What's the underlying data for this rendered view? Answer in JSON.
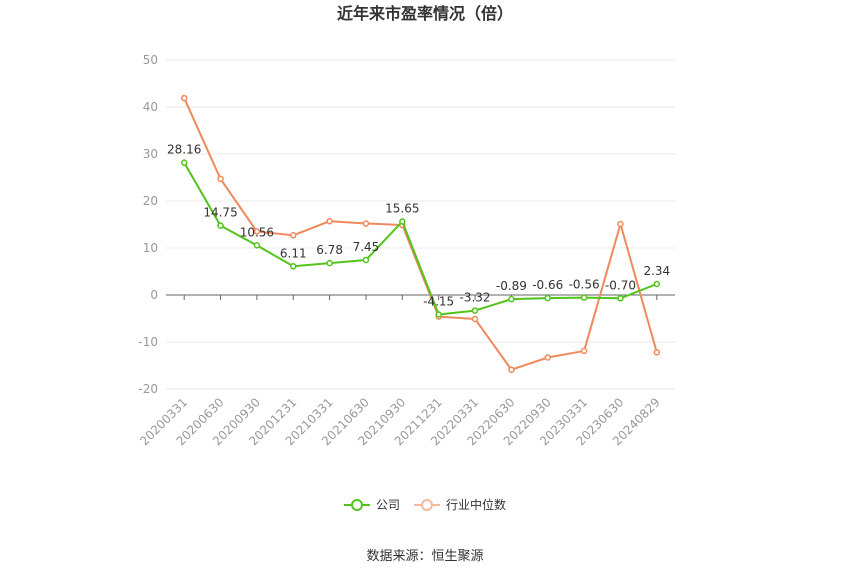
{
  "chart_data": {
    "type": "line",
    "title": "近年来市盈率情况（倍）",
    "categories": [
      "20200331",
      "20200630",
      "20200930",
      "20201231",
      "20210331",
      "20210630",
      "20210930",
      "20211231",
      "20220331",
      "20220630",
      "20220930",
      "20230331",
      "20230630",
      "20240829"
    ],
    "ylim": [
      -20,
      50
    ],
    "yticks": [
      50,
      40,
      30,
      20,
      10,
      0,
      -10,
      -20
    ],
    "grid": true,
    "legend_position": "bottom",
    "series": [
      {
        "name": "公司",
        "color": "#52c41a",
        "values": [
          28.16,
          14.75,
          10.56,
          6.11,
          6.78,
          7.45,
          15.65,
          -4.15,
          -3.32,
          -0.89,
          -0.66,
          -0.56,
          -0.7,
          2.34
        ],
        "labels": [
          "28.16",
          "14.75",
          "10.56",
          "6.11",
          "6.78",
          "7.45",
          "15.65",
          "-4.15",
          "-3.32",
          "-0.89",
          "-0.66",
          "-0.56",
          "-0.70",
          "2.34"
        ]
      },
      {
        "name": "行业中位数",
        "color": "#f0895c",
        "values": [
          41.9,
          24.7,
          13.5,
          12.7,
          15.7,
          15.2,
          14.9,
          -4.6,
          -5.1,
          -15.9,
          -13.3,
          -11.9,
          15.1,
          -12.2
        ]
      }
    ]
  },
  "legend": {
    "company": "公司",
    "industry": "行业中位数"
  },
  "source_text": "数据来源：恒生聚源"
}
